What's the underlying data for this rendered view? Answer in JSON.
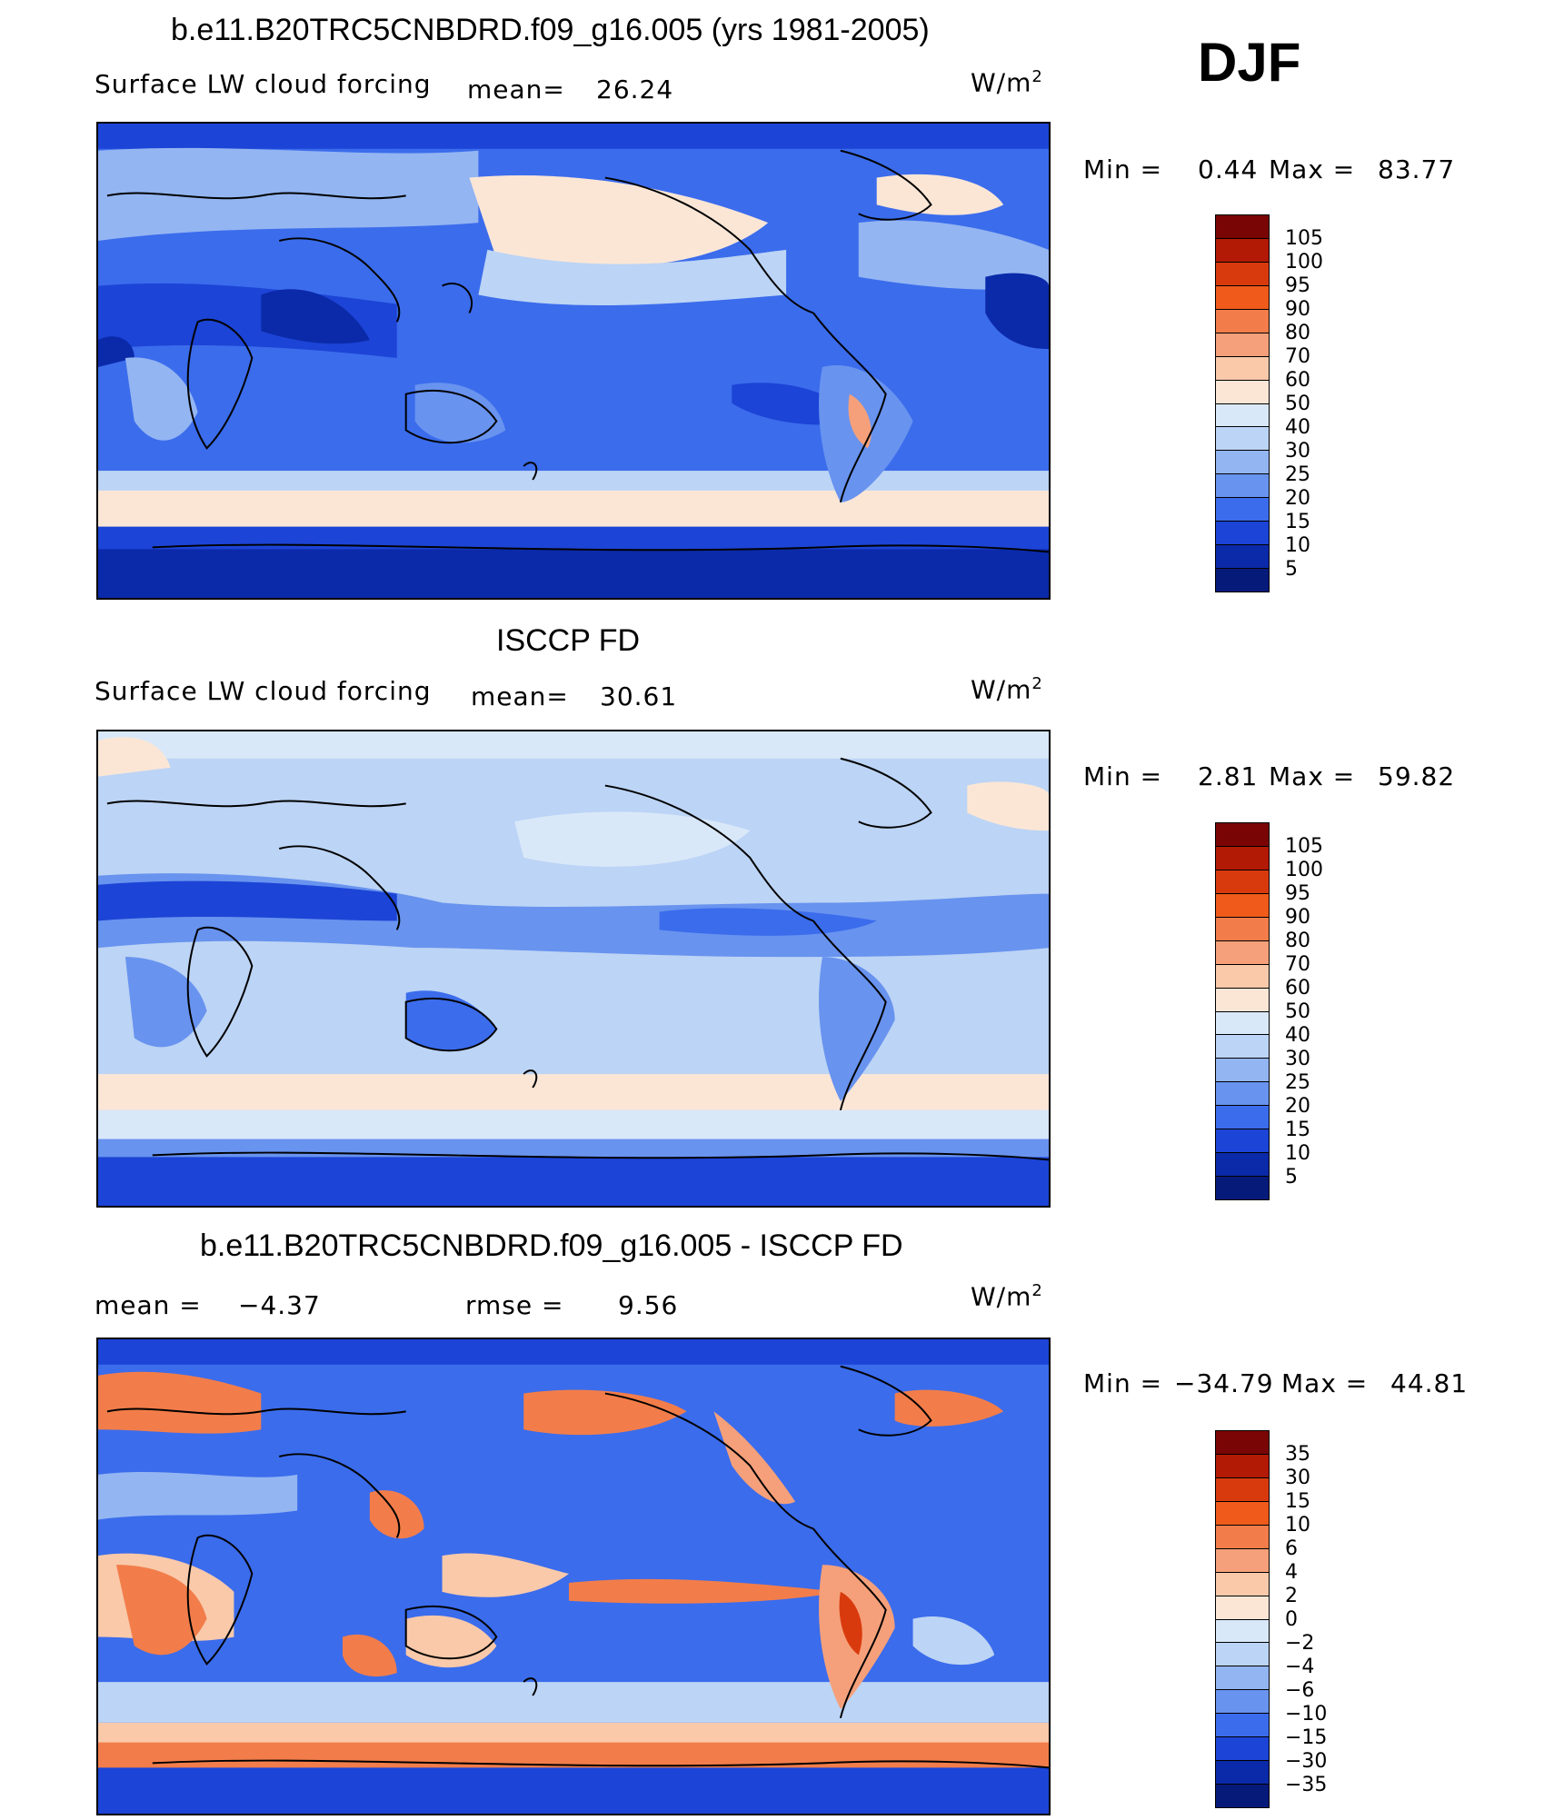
{
  "season": "DJF",
  "panels": [
    {
      "title": "b.e11.B20TRC5CNBDRD.f09_g16.005 (yrs 1981-2005)",
      "left_label": "Surface LW cloud forcing",
      "mean_label": "mean=",
      "mean_value": "26.24",
      "units": "W/m",
      "units_sup": "2",
      "min_label": "Min =",
      "min_value": "0.44",
      "max_label": "Max =",
      "max_value": "83.77",
      "colorbar_labels": [
        "105",
        "100",
        "95",
        "90",
        "80",
        "70",
        "60",
        "50",
        "40",
        "30",
        "25",
        "20",
        "15",
        "10",
        "5"
      ]
    },
    {
      "title": "ISCCP FD",
      "left_label": "Surface LW cloud forcing",
      "mean_label": "mean=",
      "mean_value": "30.61",
      "units": "W/m",
      "units_sup": "2",
      "min_label": "Min =",
      "min_value": "2.81",
      "max_label": "Max =",
      "max_value": "59.82",
      "colorbar_labels": [
        "105",
        "100",
        "95",
        "90",
        "80",
        "70",
        "60",
        "50",
        "40",
        "30",
        "25",
        "20",
        "15",
        "10",
        "5"
      ]
    },
    {
      "title": "b.e11.B20TRC5CNBDRD.f09_g16.005 - ISCCP FD",
      "mean_label": "mean =",
      "mean_value": "−4.37",
      "rmse_label": "rmse =",
      "rmse_value": "9.56",
      "units": "W/m",
      "units_sup": "2",
      "min_label": "Min =",
      "min_value": "−34.79",
      "max_label": "Max =",
      "max_value": "44.81",
      "colorbar_labels": [
        "35",
        "30",
        "15",
        "10",
        "6",
        "4",
        "2",
        "0",
        "−2",
        "−4",
        "−6",
        "−10",
        "−15",
        "−30",
        "−35"
      ]
    }
  ],
  "colorbar_colors": [
    "#7a0505",
    "#b31a05",
    "#d93a0d",
    "#f05a1a",
    "#f27d4a",
    "#f5a07a",
    "#f9c9aa",
    "#fbe6d6",
    "#d9e8f9",
    "#bcd4f5",
    "#93b5f2",
    "#6893ef",
    "#3b6cec",
    "#1c44d6",
    "#0b2aa9",
    "#061a7a"
  ],
  "map_regions": {
    "panel_1": {
      "background": "#3b6cec",
      "bands": [
        "#0b2aa9",
        "#fbe6d6",
        "#6893ef",
        "#3b6cec",
        "#1c44d6"
      ]
    },
    "panel_2": {
      "background": "#bcd4f5",
      "bands": [
        "#fbe6d6",
        "#93b5f2",
        "#3b6cec",
        "#d9e8f9",
        "#1c44d6"
      ]
    },
    "panel_3": {
      "background": "#3b6cec",
      "bands": [
        "#1c44d6",
        "#f27d4a",
        "#6893ef",
        "#bcd4f5",
        "#f27d4a"
      ]
    }
  }
}
